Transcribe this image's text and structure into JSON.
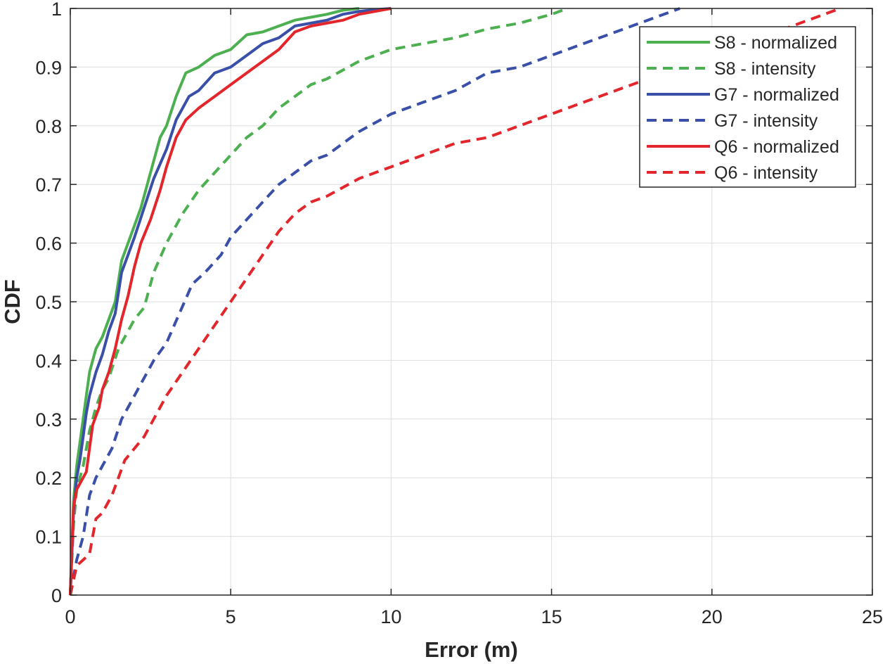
{
  "chart_data": {
    "type": "line",
    "title": "",
    "xlabel": "Error (m)",
    "ylabel": "CDF",
    "xlim": [
      0,
      25
    ],
    "ylim": [
      0,
      1
    ],
    "xticks": [
      0,
      5,
      10,
      15,
      20,
      25
    ],
    "xtick_labels": [
      "0",
      "5",
      "10",
      "15",
      "20",
      "25"
    ],
    "yticks": [
      0,
      0.1,
      0.2,
      0.3,
      0.4,
      0.5,
      0.6,
      0.7,
      0.8,
      0.9,
      1
    ],
    "ytick_labels": [
      "0",
      "0.1",
      "0.2",
      "0.3",
      "0.4",
      "0.5",
      "0.6",
      "0.7",
      "0.8",
      "0.9",
      "1"
    ],
    "grid": true,
    "legend_position": "top-right",
    "series": [
      {
        "name": "S8 - normalized",
        "color": "#4caf50",
        "style": "solid",
        "x": [
          0,
          0.05,
          0.1,
          0.2,
          0.3,
          0.4,
          0.5,
          0.6,
          0.7,
          0.8,
          1.0,
          1.2,
          1.4,
          1.6,
          1.8,
          2.0,
          2.2,
          2.5,
          2.8,
          3.0,
          3.3,
          3.6,
          4.0,
          4.5,
          5.0,
          5.5,
          6.0,
          6.5,
          7.0,
          7.5,
          8.0,
          8.5,
          9.0
        ],
        "y": [
          0,
          0.08,
          0.16,
          0.22,
          0.26,
          0.3,
          0.34,
          0.38,
          0.4,
          0.42,
          0.44,
          0.47,
          0.5,
          0.57,
          0.6,
          0.63,
          0.66,
          0.72,
          0.78,
          0.8,
          0.85,
          0.89,
          0.9,
          0.92,
          0.93,
          0.955,
          0.96,
          0.97,
          0.98,
          0.985,
          0.99,
          0.997,
          1.0
        ]
      },
      {
        "name": "S8 - intensity",
        "color": "#4caf50",
        "style": "dashed",
        "x": [
          0,
          0.1,
          0.2,
          0.4,
          0.6,
          0.8,
          1.0,
          1.2,
          1.5,
          1.8,
          2.0,
          2.3,
          2.6,
          3.0,
          3.5,
          4.0,
          4.5,
          5.0,
          5.5,
          6.0,
          6.5,
          7.0,
          7.5,
          8.0,
          9.0,
          10.0,
          11.0,
          12.0,
          13.0,
          14.0,
          15.0,
          15.5
        ],
        "y": [
          0,
          0.12,
          0.18,
          0.22,
          0.28,
          0.32,
          0.35,
          0.37,
          0.42,
          0.45,
          0.47,
          0.49,
          0.55,
          0.6,
          0.65,
          0.69,
          0.72,
          0.75,
          0.78,
          0.8,
          0.83,
          0.85,
          0.87,
          0.88,
          0.91,
          0.93,
          0.94,
          0.95,
          0.965,
          0.975,
          0.99,
          1.0
        ]
      },
      {
        "name": "G7 - normalized",
        "color": "#3a4fa8",
        "style": "solid",
        "x": [
          0,
          0.05,
          0.1,
          0.2,
          0.3,
          0.4,
          0.5,
          0.6,
          0.7,
          0.8,
          1.0,
          1.2,
          1.4,
          1.6,
          1.8,
          2.0,
          2.3,
          2.6,
          3.0,
          3.3,
          3.7,
          4.0,
          4.5,
          5.0,
          5.5,
          6.0,
          6.5,
          7.0,
          7.5,
          8.0,
          8.5,
          9.0,
          9.5,
          10.0
        ],
        "y": [
          0,
          0.07,
          0.14,
          0.2,
          0.23,
          0.27,
          0.31,
          0.34,
          0.36,
          0.38,
          0.41,
          0.45,
          0.48,
          0.55,
          0.58,
          0.61,
          0.66,
          0.71,
          0.76,
          0.81,
          0.85,
          0.86,
          0.89,
          0.9,
          0.92,
          0.94,
          0.95,
          0.97,
          0.975,
          0.98,
          0.99,
          0.995,
          0.998,
          1.0
        ]
      },
      {
        "name": "G7 - intensity",
        "color": "#3a4fa8",
        "style": "dashed",
        "x": [
          0,
          0.2,
          0.4,
          0.6,
          0.8,
          1.0,
          1.3,
          1.6,
          1.8,
          2.0,
          2.3,
          2.6,
          3.0,
          3.4,
          3.8,
          4.2,
          4.7,
          5.0,
          5.5,
          6.0,
          6.5,
          7.0,
          7.5,
          8.0,
          9.0,
          10.0,
          11.0,
          12.0,
          13.0,
          14.0,
          15.0,
          16.0,
          17.0,
          18.0,
          19.0
        ],
        "y": [
          0,
          0.06,
          0.1,
          0.17,
          0.2,
          0.22,
          0.25,
          0.3,
          0.32,
          0.34,
          0.37,
          0.4,
          0.43,
          0.48,
          0.53,
          0.55,
          0.58,
          0.61,
          0.64,
          0.67,
          0.7,
          0.72,
          0.74,
          0.75,
          0.79,
          0.82,
          0.84,
          0.86,
          0.89,
          0.9,
          0.92,
          0.94,
          0.96,
          0.98,
          1.0
        ]
      },
      {
        "name": "Q6 - normalized",
        "color": "#e3262b",
        "style": "solid",
        "x": [
          0,
          0.05,
          0.1,
          0.2,
          0.3,
          0.5,
          0.7,
          0.9,
          1.0,
          1.2,
          1.4,
          1.6,
          1.8,
          2.0,
          2.2,
          2.5,
          2.8,
          3.0,
          3.3,
          3.6,
          4.0,
          4.5,
          5.0,
          5.5,
          6.0,
          6.5,
          7.0,
          7.5,
          8.0,
          8.5,
          9.0,
          9.5,
          10.0
        ],
        "y": [
          0,
          0.08,
          0.15,
          0.18,
          0.19,
          0.21,
          0.29,
          0.32,
          0.35,
          0.38,
          0.42,
          0.47,
          0.51,
          0.56,
          0.6,
          0.64,
          0.69,
          0.73,
          0.78,
          0.81,
          0.83,
          0.85,
          0.87,
          0.89,
          0.91,
          0.93,
          0.96,
          0.97,
          0.975,
          0.98,
          0.99,
          0.995,
          1.0
        ]
      },
      {
        "name": "Q6 - intensity",
        "color": "#e3262b",
        "style": "dashed",
        "x": [
          0,
          0.2,
          0.4,
          0.6,
          0.7,
          0.8,
          1.0,
          1.3,
          1.5,
          1.7,
          2.0,
          2.3,
          2.6,
          3.0,
          3.5,
          4.0,
          4.5,
          5.0,
          5.5,
          6.0,
          6.5,
          7.0,
          7.5,
          8.0,
          9.0,
          10.0,
          11.0,
          12.0,
          13.0,
          14.0,
          15.0,
          16.0,
          17.0,
          18.0,
          19.0,
          20.0,
          21.0,
          22.0,
          23.0,
          24.0
        ],
        "y": [
          0,
          0.05,
          0.06,
          0.07,
          0.1,
          0.13,
          0.14,
          0.17,
          0.2,
          0.23,
          0.25,
          0.27,
          0.3,
          0.34,
          0.38,
          0.42,
          0.46,
          0.5,
          0.54,
          0.58,
          0.62,
          0.65,
          0.67,
          0.68,
          0.71,
          0.73,
          0.75,
          0.77,
          0.78,
          0.8,
          0.82,
          0.84,
          0.86,
          0.88,
          0.9,
          0.92,
          0.94,
          0.96,
          0.98,
          1.0
        ]
      }
    ]
  }
}
